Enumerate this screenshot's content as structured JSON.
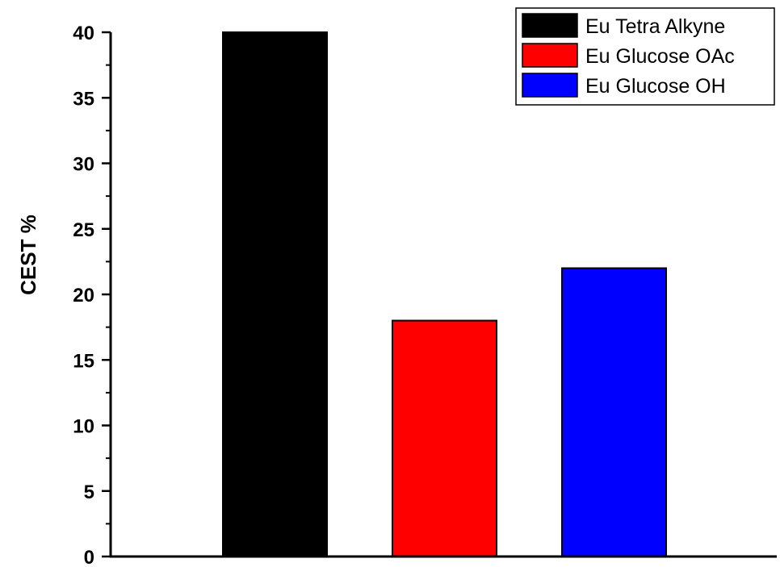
{
  "chart_data": {
    "type": "bar",
    "ylabel": "CEST %",
    "xlabel": "",
    "ylim": [
      0,
      40
    ],
    "yticks": [
      0,
      5,
      10,
      15,
      20,
      25,
      30,
      35,
      40
    ],
    "grid": false,
    "legend_position": "top-right",
    "series": [
      {
        "name": "Eu Tetra Alkyne",
        "value": 40,
        "color": "#000000"
      },
      {
        "name": "Eu Glucose OAc",
        "value": 18,
        "color": "#ff0000"
      },
      {
        "name": "Eu Glucose OH",
        "value": 22,
        "color": "#0000ff"
      }
    ]
  }
}
